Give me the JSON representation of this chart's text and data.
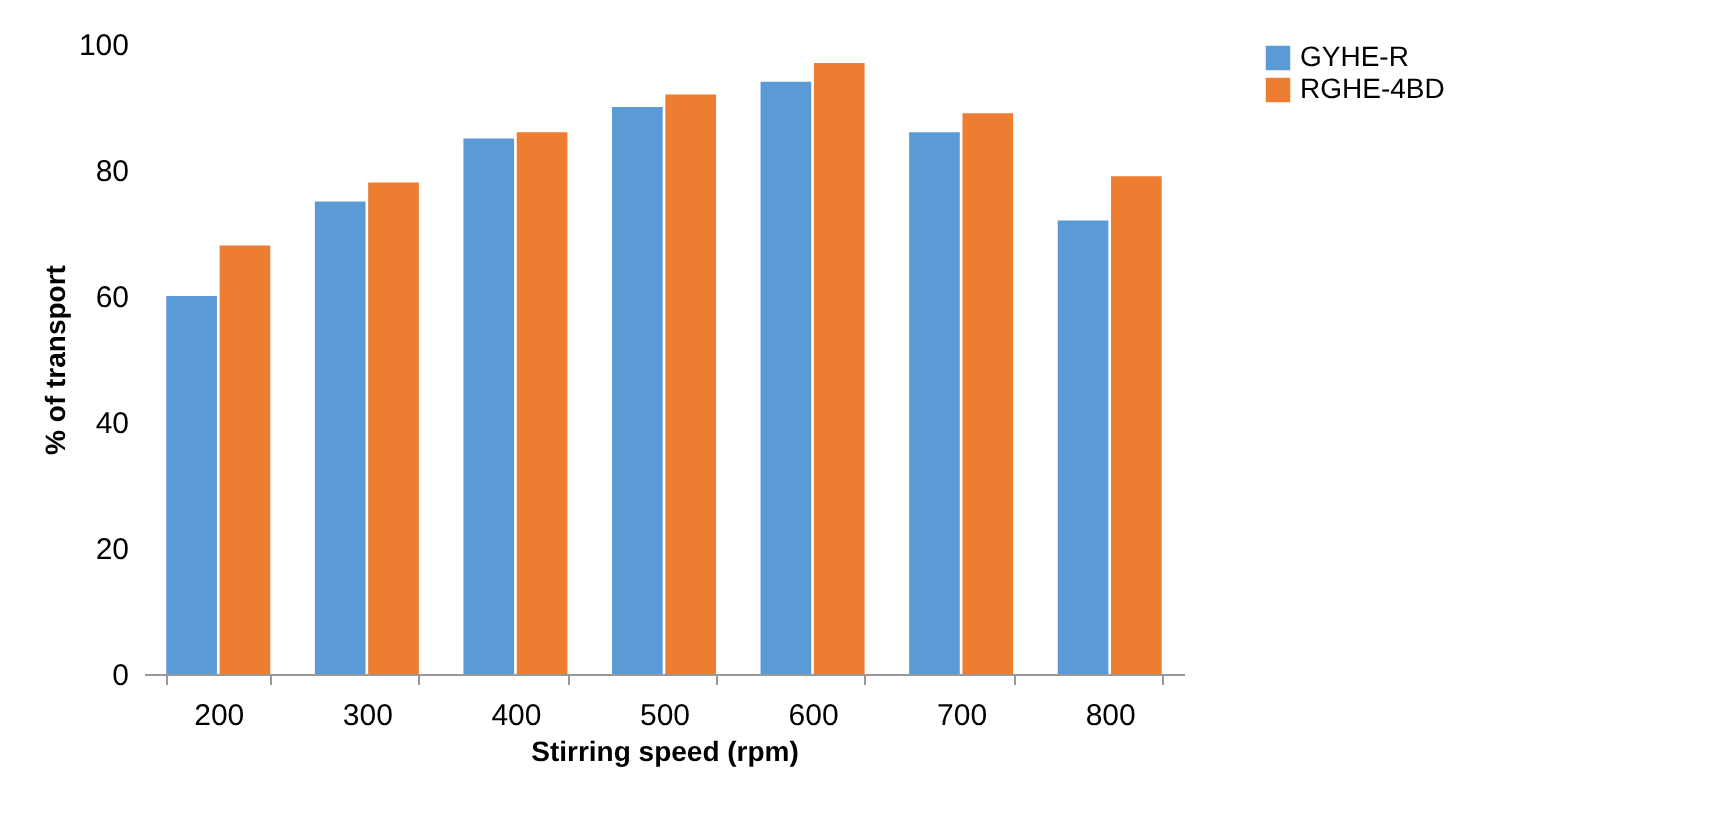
{
  "chart_data": {
    "type": "bar",
    "xlabel": "Stirring speed (rpm)",
    "ylabel": "% of transport",
    "categories": [
      "200",
      "300",
      "400",
      "500",
      "600",
      "700",
      "800"
    ],
    "series": [
      {
        "name": "GYHE-R",
        "color": "#5b9bd5",
        "values": [
          60,
          75,
          85,
          90,
          94,
          86,
          72
        ]
      },
      {
        "name": "RGHE-4BD",
        "color": "#ed7d31",
        "values": [
          68,
          78,
          86,
          92,
          97,
          89,
          79
        ]
      }
    ],
    "ylim": [
      0,
      100
    ],
    "yticks": [
      0,
      20,
      40,
      60,
      80,
      100
    ],
    "legend": "right"
  }
}
